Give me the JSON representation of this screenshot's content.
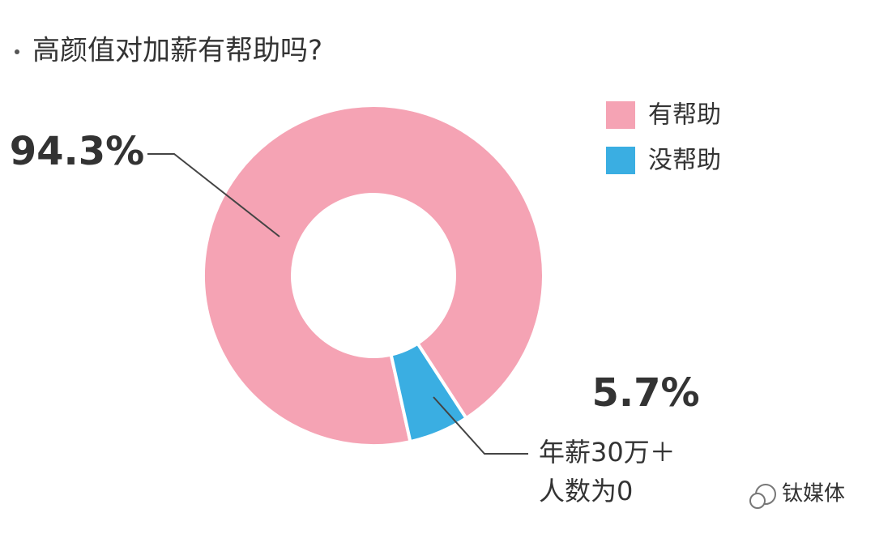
{
  "chart_data": {
    "type": "pie",
    "donut": true,
    "title": "高颜值对加薪有帮助吗?",
    "categories": [
      "有帮助",
      "没帮助"
    ],
    "values": [
      94.3,
      5.7
    ],
    "value_labels": [
      "94.3%",
      "5.7%"
    ],
    "colors": [
      "#f5a3b4",
      "#3aaee2"
    ],
    "legend": "top-right",
    "annotation": [
      "年薪30万＋",
      "人数为0"
    ],
    "watermark": "钛媒体"
  }
}
